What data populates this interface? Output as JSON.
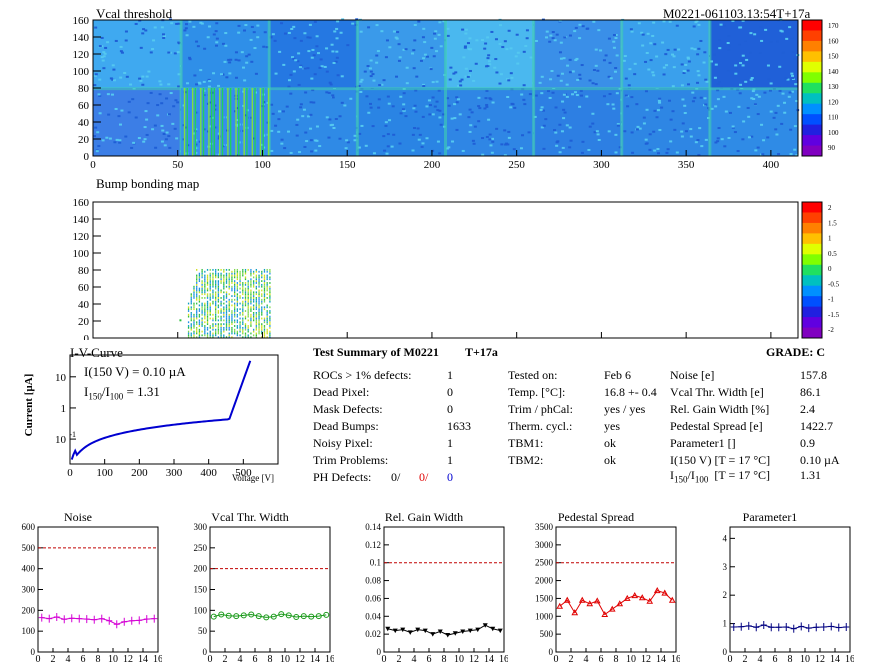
{
  "maps": [
    {
      "title": "Vcal threshold",
      "id_label": "M0221-061103.13:54T+17a",
      "x_ticks": [
        "0",
        "50",
        "100",
        "150",
        "200",
        "250",
        "300",
        "350",
        "400"
      ],
      "y_ticks": [
        "0",
        "20",
        "40",
        "60",
        "80",
        "100",
        "120",
        "140",
        "160"
      ],
      "palette_labels": [
        "170",
        "160",
        "150",
        "140",
        "130",
        "120",
        "110",
        "100",
        "90"
      ],
      "xlim": [
        0,
        416
      ],
      "ylim": [
        0,
        160
      ]
    },
    {
      "title": "Bump bonding map",
      "x_ticks": [
        "0",
        "50",
        "100",
        "150",
        "200",
        "250",
        "300",
        "350",
        "400"
      ],
      "y_ticks": [
        "0",
        "20",
        "40",
        "60",
        "80",
        "100",
        "120",
        "140",
        "160"
      ],
      "palette_labels": [
        "2",
        "1.5",
        "1",
        "0.5",
        "0",
        "-0.5",
        "-1",
        "-1.5",
        "-2"
      ],
      "xlim": [
        0,
        416
      ],
      "ylim": [
        0,
        160
      ]
    }
  ],
  "iv": {
    "title": "I-V-Curve",
    "ylabel": "Current [µA]",
    "xlabel": "Voltage [V]",
    "note1": "I(150 V) = 0.10 µA",
    "note2_pre": "I",
    "note2_sub1": "150",
    "note2_mid": "/I",
    "note2_sub2": "100",
    "note2_post": "=  1.31",
    "x_ticks": [
      "0",
      "100",
      "200",
      "300",
      "400",
      "500"
    ],
    "y_ticks": [
      "10",
      "1",
      "10"
    ],
    "y_tick_exp": "-1"
  },
  "summary": {
    "title": "Test Summary of M0221",
    "temp_tag": "T+17a",
    "grade_label": "GRADE:  C",
    "col1": [
      {
        "label": "ROCs > 1% defects:",
        "value": "1"
      },
      {
        "label": "Dead Pixel:",
        "value": "0"
      },
      {
        "label": "Mask Defects:",
        "value": "0"
      },
      {
        "label": "Dead Bumps:",
        "value": "1633"
      },
      {
        "label": "Noisy Pixel:",
        "value": "1"
      },
      {
        "label": "Trim Problems:",
        "value": "1"
      }
    ],
    "ph_label": "PH Defects:",
    "ph_values": [
      "0/",
      "0/",
      "0"
    ],
    "col2": [
      {
        "label": "Tested on:",
        "value": "Feb 6"
      },
      {
        "label": "Temp. [°C]:",
        "value": "16.8 +- 0.4"
      },
      {
        "label": "Trim / phCal:",
        "value": "yes / yes"
      },
      {
        "label": "Therm. cycl.:",
        "value": "yes"
      },
      {
        "label": "TBM1:",
        "value": "ok"
      },
      {
        "label": "TBM2:",
        "value": "ok"
      }
    ],
    "col3": [
      {
        "label": "Noise [e]",
        "value": "157.8"
      },
      {
        "label": "Vcal Thr. Width [e]",
        "value": "86.1"
      },
      {
        "label": "Rel. Gain Width [%]",
        "value": "2.4"
      },
      {
        "label": "Pedestal Spread [e]",
        "value": "1422.7"
      },
      {
        "label": "Parameter1 []",
        "value": "0.9"
      },
      {
        "label": "I(150 V) [T = 17 °C]",
        "value": "0.10 µA"
      }
    ],
    "ratio_label": {
      "pre": "I",
      "sub1": "150",
      "mid": "/I",
      "sub2": "100",
      "post": "  [T = 17 °C]"
    },
    "ratio_value": "1.31"
  },
  "chart_data": [
    {
      "type": "line",
      "title": "Noise",
      "color": "#d400d4",
      "marker": "cross",
      "x": [
        0,
        1,
        2,
        3,
        4,
        5,
        6,
        7,
        8,
        9,
        10,
        11,
        12,
        13,
        14,
        15
      ],
      "values": [
        165,
        160,
        168,
        157,
        162,
        160,
        158,
        155,
        160,
        150,
        133,
        145,
        150,
        152,
        158,
        160
      ],
      "ylim": [
        0,
        600
      ],
      "y_ticks": [
        "0",
        "100",
        "200",
        "300",
        "400",
        "500",
        "600"
      ],
      "cut": 500,
      "x_ticks": [
        "0",
        "2",
        "4",
        "6",
        "8",
        "10",
        "12",
        "14",
        "16"
      ]
    },
    {
      "type": "line",
      "title": "Vcal Thr. Width",
      "color": "#1a9a1a",
      "marker": "circle",
      "x": [
        0,
        1,
        2,
        3,
        4,
        5,
        6,
        7,
        8,
        9,
        10,
        11,
        12,
        13,
        14,
        15
      ],
      "values": [
        85,
        90,
        87,
        86,
        88,
        90,
        86,
        83,
        85,
        91,
        88,
        84,
        86,
        85,
        86,
        89
      ],
      "ylim": [
        0,
        300
      ],
      "y_ticks": [
        "0",
        "50",
        "100",
        "150",
        "200",
        "250",
        "300"
      ],
      "cut": 200,
      "x_ticks": [
        "0",
        "2",
        "4",
        "6",
        "8",
        "10",
        "12",
        "14",
        "16"
      ]
    },
    {
      "type": "line",
      "title": "Rel. Gain Width",
      "color": "#000000",
      "marker": "triangle-down",
      "x": [
        0,
        1,
        2,
        3,
        4,
        5,
        6,
        7,
        8,
        9,
        10,
        11,
        12,
        13,
        14,
        15
      ],
      "values": [
        0.026,
        0.024,
        0.025,
        0.022,
        0.025,
        0.024,
        0.02,
        0.023,
        0.019,
        0.021,
        0.023,
        0.024,
        0.025,
        0.03,
        0.026,
        0.024
      ],
      "ylim": [
        0,
        0.14
      ],
      "y_ticks": [
        "0",
        "0.02",
        "0.04",
        "0.06",
        "0.08",
        "0.1",
        "0.12",
        "0.14"
      ],
      "cut": 0.1,
      "x_ticks": [
        "0",
        "2",
        "4",
        "6",
        "8",
        "10",
        "12",
        "14",
        "16"
      ]
    },
    {
      "type": "line",
      "title": "Pedestal Spread",
      "color": "#e00000",
      "marker": "triangle-up",
      "x": [
        0,
        1,
        2,
        3,
        4,
        5,
        6,
        7,
        8,
        9,
        10,
        11,
        12,
        13,
        14,
        15
      ],
      "values": [
        1280,
        1450,
        1100,
        1450,
        1350,
        1430,
        1050,
        1200,
        1350,
        1500,
        1580,
        1520,
        1420,
        1720,
        1650,
        1450
      ],
      "ylim": [
        0,
        3500
      ],
      "y_ticks": [
        "0",
        "500",
        "1000",
        "1500",
        "2000",
        "2500",
        "3000",
        "3500"
      ],
      "cut": 2500,
      "x_ticks": [
        "0",
        "2",
        "4",
        "6",
        "8",
        "10",
        "12",
        "14",
        "16"
      ]
    },
    {
      "type": "line",
      "title": "Parameter1",
      "color": "#000080",
      "marker": "cross",
      "x": [
        0,
        1,
        2,
        3,
        4,
        5,
        6,
        7,
        8,
        9,
        10,
        11,
        12,
        13,
        14,
        15
      ],
      "values": [
        0.88,
        0.89,
        0.92,
        0.87,
        0.95,
        0.87,
        0.87,
        0.88,
        0.82,
        0.9,
        0.84,
        0.87,
        0.88,
        0.9,
        0.86,
        0.88
      ],
      "ylim": [
        0,
        4.4
      ],
      "y_ticks": [
        "0",
        "1",
        "2",
        "3",
        "4"
      ],
      "cut": null,
      "x_ticks": [
        "0",
        "2",
        "4",
        "6",
        "8",
        "10",
        "12",
        "14",
        "16"
      ]
    }
  ]
}
